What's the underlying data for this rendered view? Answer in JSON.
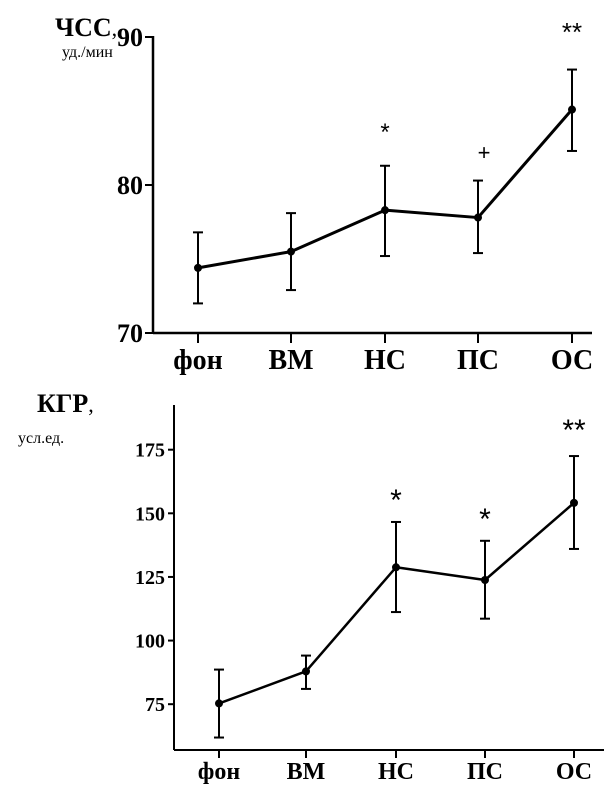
{
  "chart_data": [
    {
      "type": "line",
      "ylabel_main": "ЧСС",
      "ylabel_comma": ",",
      "ylabel_unit": "уд./мин",
      "categories": [
        "фон",
        "ВМ",
        "НС",
        "ПС",
        "ОС"
      ],
      "yticks": [
        "90",
        "80",
        "70"
      ],
      "ylim": [
        70,
        90
      ],
      "series": [
        {
          "values": [
            74.4,
            75.5,
            78.3,
            77.8,
            85.1
          ],
          "error_upper": [
            76.8,
            78.1,
            81.3,
            80.3,
            87.8
          ],
          "error_lower": [
            72.0,
            72.9,
            75.2,
            75.4,
            82.3
          ]
        }
      ],
      "annotations": [
        "",
        "",
        "*",
        "+",
        "**"
      ],
      "grid": false
    },
    {
      "type": "line",
      "ylabel_main": "КГР",
      "ylabel_comma": ",",
      "ylabel_unit": "усл.ед.",
      "categories": [
        "фон",
        "ВМ",
        "НС",
        "ПС",
        "ОС"
      ],
      "yticks": [
        "175",
        "150",
        "125",
        "100",
        "75"
      ],
      "ylim": [
        57,
        192
      ],
      "series": [
        {
          "values": [
            75.3,
            87.9,
            128.8,
            123.8,
            154.1
          ],
          "error_upper": [
            88.6,
            94.1,
            146.6,
            139.2,
            172.5
          ],
          "error_lower": [
            61.9,
            81.0,
            111.2,
            108.6,
            136.0
          ]
        }
      ],
      "annotations": [
        "",
        "",
        "*",
        "*",
        "**"
      ],
      "grid": false
    }
  ]
}
